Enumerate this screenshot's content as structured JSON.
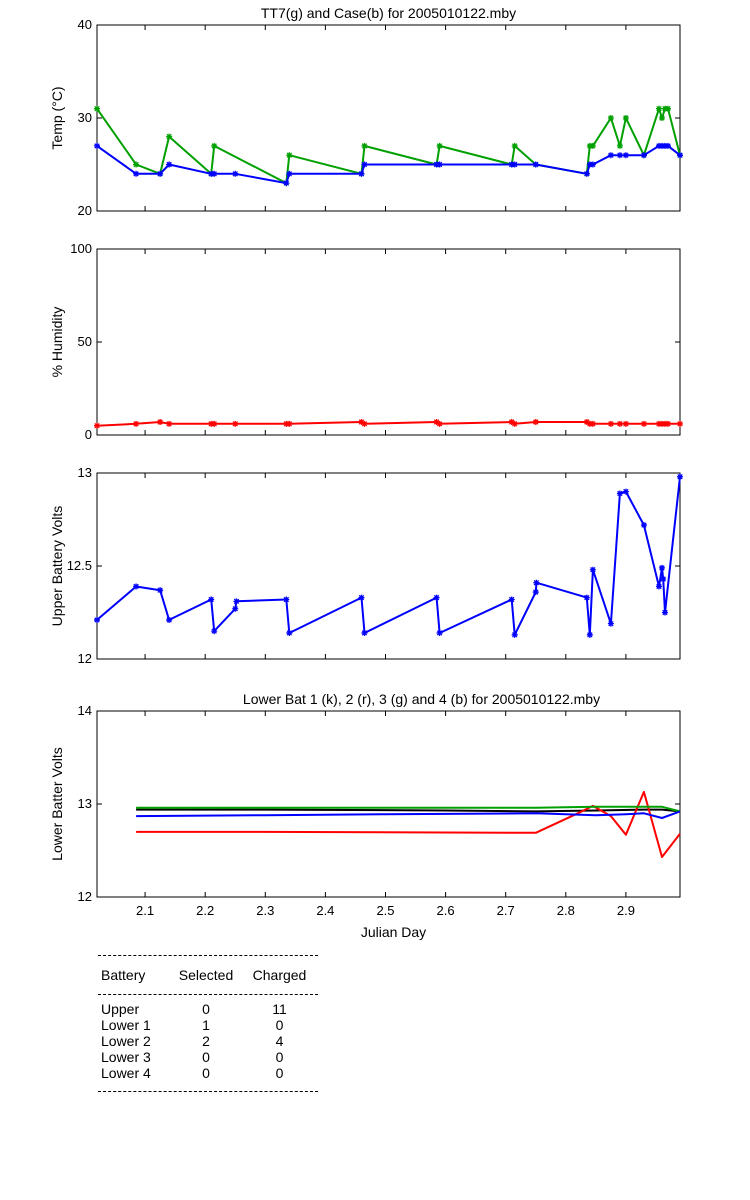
{
  "chart_data": [
    {
      "type": "line",
      "title": "TT7(g) and Case(b) for 2005010122.mby",
      "xlabel": "",
      "ylabel": "Temp  (°C)",
      "xlim": [
        2.02,
        2.99
      ],
      "ylim": [
        20,
        40
      ],
      "yticks": [
        "20",
        "30",
        "40"
      ],
      "series": [
        {
          "color": "#00a000",
          "x": [
            2.02,
            2.085,
            2.125,
            2.14,
            2.21,
            2.215,
            2.335,
            2.34,
            2.46,
            2.465,
            2.585,
            2.59,
            2.71,
            2.715,
            2.75,
            2.835,
            2.84,
            2.845,
            2.875,
            2.89,
            2.9,
            2.93,
            2.955,
            2.96,
            2.965,
            2.97,
            2.99
          ],
          "y": [
            31,
            25,
            24,
            28,
            24,
            27,
            23,
            26,
            24,
            27,
            25,
            27,
            25,
            27,
            25,
            24,
            27,
            27,
            30,
            27,
            30,
            26,
            31,
            30,
            31,
            31,
            26
          ]
        },
        {
          "color": "#0000ff",
          "x": [
            2.02,
            2.085,
            2.125,
            2.14,
            2.21,
            2.215,
            2.25,
            2.335,
            2.34,
            2.46,
            2.465,
            2.585,
            2.59,
            2.71,
            2.715,
            2.75,
            2.835,
            2.84,
            2.845,
            2.875,
            2.89,
            2.9,
            2.93,
            2.955,
            2.96,
            2.965,
            2.97,
            2.99
          ],
          "y": [
            27,
            24,
            24,
            25,
            24,
            24,
            24,
            23,
            24,
            24,
            25,
            25,
            25,
            25,
            25,
            25,
            24,
            25,
            25,
            26,
            26,
            26,
            26,
            27,
            27,
            27,
            27,
            26
          ]
        }
      ]
    },
    {
      "type": "line",
      "title": "",
      "xlabel": "",
      "ylabel": "% Humidity",
      "xlim": [
        2.02,
        2.99
      ],
      "ylim": [
        0,
        100
      ],
      "yticks": [
        "0",
        "50",
        "100"
      ],
      "series": [
        {
          "color": "#ff0000",
          "x": [
            2.02,
            2.085,
            2.125,
            2.14,
            2.21,
            2.215,
            2.25,
            2.335,
            2.34,
            2.46,
            2.465,
            2.585,
            2.59,
            2.71,
            2.715,
            2.75,
            2.835,
            2.84,
            2.845,
            2.875,
            2.89,
            2.9,
            2.93,
            2.955,
            2.96,
            2.965,
            2.97,
            2.99
          ],
          "y": [
            5,
            6,
            7,
            6,
            6,
            6,
            6,
            6,
            6,
            7,
            6,
            7,
            6,
            7,
            6,
            7,
            7,
            6,
            6,
            6,
            6,
            6,
            6,
            6,
            6,
            6,
            6,
            6
          ]
        }
      ]
    },
    {
      "type": "line",
      "title": "",
      "xlabel": "",
      "ylabel": "Upper Battery Volts",
      "xlim": [
        2.02,
        2.99
      ],
      "ylim": [
        12,
        13
      ],
      "yticks": [
        "12",
        "12.5",
        "13"
      ],
      "series": [
        {
          "color": "#0000ff",
          "x": [
            2.02,
            2.085,
            2.125,
            2.14,
            2.21,
            2.215,
            2.25,
            2.252,
            2.335,
            2.34,
            2.46,
            2.465,
            2.585,
            2.59,
            2.71,
            2.715,
            2.75,
            2.751,
            2.835,
            2.84,
            2.845,
            2.875,
            2.89,
            2.9,
            2.93,
            2.955,
            2.96,
            2.962,
            2.965,
            2.99
          ],
          "y": [
            12.21,
            12.39,
            12.37,
            12.21,
            12.32,
            12.15,
            12.27,
            12.31,
            12.32,
            12.14,
            12.33,
            12.14,
            12.33,
            12.14,
            12.32,
            12.13,
            12.36,
            12.41,
            12.33,
            12.13,
            12.48,
            12.19,
            12.89,
            12.9,
            12.72,
            12.39,
            12.49,
            12.43,
            12.25,
            12.98
          ]
        }
      ]
    },
    {
      "type": "line",
      "title": "Lower Bat 1 (k), 2 (r), 3 (g) and 4 (b) for 2005010122.mby",
      "xlabel": "Julian Day",
      "ylabel": "Lower Batter Volts",
      "xlim": [
        2.02,
        2.99
      ],
      "ylim": [
        12,
        14
      ],
      "yticks": [
        "12",
        "13",
        "14"
      ],
      "xticks": [
        2.1,
        2.2,
        2.3,
        2.4,
        2.5,
        2.6,
        2.7,
        2.8,
        2.9
      ],
      "series": [
        {
          "color": "#000000",
          "x": [
            2.085,
            2.3,
            2.6,
            2.75,
            2.85,
            2.93,
            2.96,
            2.99
          ],
          "y": [
            12.94,
            12.94,
            12.93,
            12.92,
            12.93,
            12.94,
            12.94,
            12.92
          ]
        },
        {
          "color": "#ff0000",
          "x": [
            2.085,
            2.3,
            2.75,
            2.82,
            2.845,
            2.875,
            2.9,
            2.93,
            2.96,
            2.99
          ],
          "y": [
            12.7,
            12.7,
            12.69,
            12.9,
            12.98,
            12.87,
            12.67,
            13.13,
            12.43,
            12.68
          ]
        },
        {
          "color": "#00a000",
          "x": [
            2.085,
            2.3,
            2.5,
            2.75,
            2.85,
            2.9,
            2.96,
            2.99
          ],
          "y": [
            12.96,
            12.96,
            12.96,
            12.96,
            12.97,
            12.97,
            12.97,
            12.92
          ]
        },
        {
          "color": "#0000ff",
          "x": [
            2.085,
            2.3,
            2.5,
            2.75,
            2.85,
            2.9,
            2.93,
            2.96,
            2.99
          ],
          "y": [
            12.87,
            12.88,
            12.89,
            12.9,
            12.88,
            12.89,
            12.9,
            12.85,
            12.92
          ]
        }
      ]
    }
  ],
  "table": {
    "headers": [
      "Battery",
      "Selected",
      "Charged"
    ],
    "rows": [
      [
        "Upper",
        "0",
        "11"
      ],
      [
        "Lower 1",
        "1",
        "0"
      ],
      [
        "Lower 2",
        "2",
        "4"
      ],
      [
        "Lower 3",
        "0",
        "0"
      ],
      [
        "Lower 4",
        "0",
        "0"
      ]
    ]
  }
}
